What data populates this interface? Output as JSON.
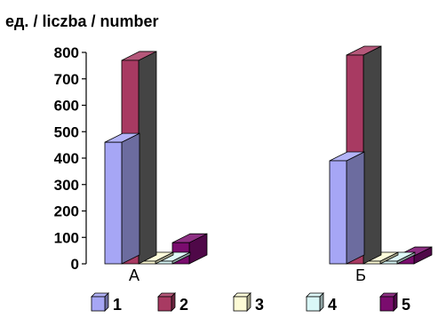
{
  "chart_data": {
    "type": "bar",
    "ylabel": "ед. / liczba / number",
    "categories": [
      "А",
      "Б"
    ],
    "ylim": [
      0,
      800
    ],
    "yticks": [
      "800",
      "700",
      "600",
      "500",
      "400",
      "300",
      "200",
      "100",
      "0"
    ],
    "series": [
      {
        "name": "1",
        "values": [
          460,
          390
        ],
        "color": "#a6a6f5"
      },
      {
        "name": "2",
        "values": [
          770,
          790
        ],
        "color": "#a83a62"
      },
      {
        "name": "3",
        "values": [
          10,
          10
        ],
        "color": "#fdfbd5"
      },
      {
        "name": "4",
        "values": [
          10,
          10
        ],
        "color": "#d9f7f7"
      },
      {
        "name": "5",
        "values": [
          80,
          30
        ],
        "color": "#7a0c6e"
      }
    ],
    "grid": false,
    "legend": "bottom"
  }
}
